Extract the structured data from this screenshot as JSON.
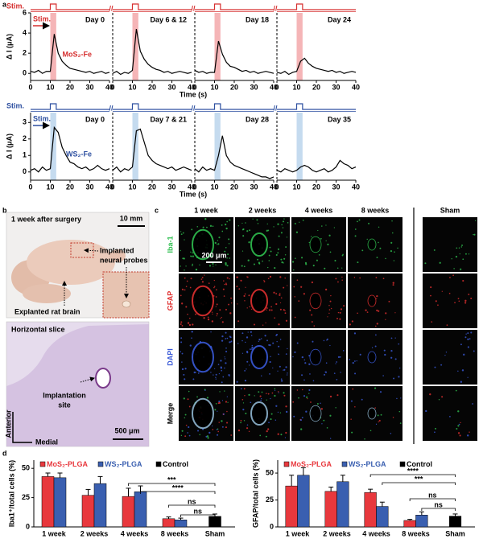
{
  "panel_labels": [
    "a",
    "b",
    "c",
    "d"
  ],
  "chart_data": [
    {
      "type": "line",
      "title": "Day 0",
      "ylabel": "Δ I (μA)",
      "xlabel": "Time (s)",
      "x": [
        0,
        2,
        4,
        6,
        8,
        10,
        12,
        14,
        16,
        18,
        20,
        22,
        24,
        26,
        28,
        30,
        32,
        34,
        36,
        38,
        40
      ],
      "series": [
        {
          "name": "MoS₂-Fe",
          "name_color": "#d62f2f",
          "color": "#000000",
          "values": [
            0.2,
            0.1,
            0.3,
            0.0,
            0.2,
            0.2,
            3.9,
            2.0,
            1.2,
            0.8,
            0.5,
            0.4,
            0.3,
            0.2,
            0.1,
            0.2,
            0.0,
            0.1,
            0.2,
            0.0,
            0.1
          ]
        }
      ],
      "xlim": [
        0,
        40
      ],
      "xticks": [
        0,
        10,
        20,
        30,
        40
      ],
      "ylim": [
        -0.7,
        6
      ],
      "yticks": [
        0,
        2,
        4,
        6
      ],
      "stim": {
        "label": "Stim.",
        "arrow_label": "Stim.",
        "range": [
          10,
          13
        ],
        "shade": "#f5b5b7",
        "color": "#d62f2f"
      }
    },
    {
      "type": "line",
      "title": "Day 6 & 12",
      "x": [
        0,
        2,
        4,
        6,
        8,
        10,
        12,
        14,
        16,
        18,
        20,
        22,
        24,
        26,
        28,
        30,
        32,
        34,
        36,
        38,
        40
      ],
      "series": [
        {
          "color": "#000000",
          "values": [
            0.0,
            0.2,
            -0.1,
            0.1,
            0.0,
            0.3,
            4.4,
            2.2,
            1.4,
            0.9,
            0.6,
            0.4,
            0.3,
            0.1,
            0.2,
            0.0,
            0.1,
            0.2,
            0.1,
            0.0,
            0.1
          ]
        }
      ],
      "xlim": [
        0,
        40
      ],
      "xticks": [
        0,
        10,
        20,
        30,
        40
      ],
      "ylim": [
        -0.7,
        6
      ],
      "stim": {
        "range": [
          10,
          13
        ],
        "shade": "#f5b5b7",
        "color": "#d62f2f"
      }
    },
    {
      "type": "line",
      "title": "Day 18",
      "x": [
        0,
        2,
        4,
        6,
        8,
        10,
        12,
        14,
        16,
        18,
        20,
        22,
        24,
        26,
        28,
        30,
        32,
        34,
        36,
        38,
        40
      ],
      "series": [
        {
          "color": "#000000",
          "values": [
            0.3,
            0.1,
            0.2,
            0.0,
            0.1,
            0.1,
            3.2,
            1.9,
            1.1,
            0.7,
            0.6,
            0.4,
            0.2,
            0.3,
            0.1,
            0.2,
            0.0,
            0.1,
            0.2,
            0.1,
            0.0
          ]
        }
      ],
      "xlim": [
        0,
        40
      ],
      "xticks": [
        0,
        10,
        20,
        30,
        40
      ],
      "ylim": [
        -0.7,
        6
      ],
      "stim": {
        "range": [
          10,
          13
        ],
        "shade": "#f5b5b7",
        "color": "#d62f2f"
      }
    },
    {
      "type": "line",
      "title": "Day 24",
      "x": [
        0,
        2,
        4,
        6,
        8,
        10,
        12,
        14,
        16,
        18,
        20,
        22,
        24,
        26,
        28,
        30,
        32,
        34,
        36,
        38,
        40
      ],
      "series": [
        {
          "color": "#000000",
          "values": [
            0.1,
            0.0,
            0.2,
            -0.1,
            0.1,
            0.2,
            1.2,
            1.5,
            1.0,
            0.7,
            0.5,
            0.4,
            0.3,
            0.2,
            0.3,
            0.1,
            0.2,
            0.0,
            0.1,
            0.2,
            0.1
          ]
        }
      ],
      "xlim": [
        0,
        40
      ],
      "xticks": [
        0,
        10,
        20,
        30,
        40
      ],
      "ylim": [
        -0.7,
        6
      ],
      "stim": {
        "range": [
          10,
          13
        ],
        "shade": "#f5b5b7",
        "color": "#d62f2f"
      }
    },
    {
      "type": "line",
      "title": "Day 0",
      "ylabel": "Δ I (μA)",
      "xlabel": "Time (s)",
      "x": [
        0,
        2,
        4,
        6,
        8,
        10,
        12,
        14,
        16,
        18,
        20,
        22,
        24,
        26,
        28,
        30,
        32,
        34,
        36,
        38,
        40
      ],
      "series": [
        {
          "name": "WS₂-Fe",
          "name_color": "#2d4fa0",
          "color": "#000000",
          "values": [
            0.1,
            0.2,
            0.0,
            0.3,
            0.1,
            0.2,
            2.7,
            2.4,
            1.5,
            1.0,
            0.6,
            0.5,
            0.3,
            0.2,
            0.3,
            0.1,
            0.2,
            0.4,
            0.2,
            0.1,
            0.2
          ]
        }
      ],
      "xlim": [
        0,
        40
      ],
      "xticks": [
        0,
        10,
        20,
        30,
        40
      ],
      "ylim": [
        -0.5,
        3.6
      ],
      "yticks": [
        0,
        1,
        2,
        3
      ],
      "stim": {
        "label": "Stim.",
        "arrow_label": "Stim.",
        "range": [
          10,
          13
        ],
        "shade": "#c5dbef",
        "color": "#2d4fa0"
      }
    },
    {
      "type": "line",
      "title": "Day 7 & 21",
      "x": [
        0,
        2,
        4,
        6,
        8,
        10,
        12,
        14,
        16,
        18,
        20,
        22,
        24,
        26,
        28,
        30,
        32,
        34,
        36,
        38,
        40
      ],
      "series": [
        {
          "color": "#000000",
          "values": [
            0.1,
            0.3,
            0.0,
            0.2,
            0.1,
            0.3,
            2.5,
            2.6,
            1.8,
            1.0,
            0.7,
            0.5,
            0.4,
            0.3,
            0.2,
            0.3,
            0.1,
            0.2,
            0.3,
            0.2,
            0.1
          ]
        }
      ],
      "xlim": [
        0,
        40
      ],
      "xticks": [
        0,
        10,
        20,
        30,
        40
      ],
      "ylim": [
        -0.5,
        3.6
      ],
      "stim": {
        "range": [
          10,
          13
        ],
        "shade": "#c5dbef",
        "color": "#2d4fa0"
      }
    },
    {
      "type": "line",
      "title": "Day 28",
      "x": [
        0,
        2,
        4,
        6,
        8,
        10,
        12,
        14,
        16,
        18,
        20,
        22,
        24,
        26,
        28,
        30,
        32,
        34,
        36,
        38,
        40
      ],
      "series": [
        {
          "color": "#000000",
          "values": [
            0.2,
            0.0,
            0.3,
            0.1,
            0.2,
            0.1,
            1.0,
            2.2,
            1.0,
            0.6,
            0.4,
            0.3,
            0.2,
            0.1,
            0.0,
            -0.1,
            -0.2,
            -0.3,
            -0.3,
            -0.4,
            -0.3
          ]
        }
      ],
      "xlim": [
        0,
        40
      ],
      "xticks": [
        0,
        10,
        20,
        30,
        40
      ],
      "ylim": [
        -0.5,
        3.6
      ],
      "stim": {
        "range": [
          10,
          13
        ],
        "shade": "#c5dbef",
        "color": "#2d4fa0"
      }
    },
    {
      "type": "line",
      "title": "Day 35",
      "x": [
        0,
        2,
        4,
        6,
        8,
        10,
        12,
        14,
        16,
        18,
        20,
        22,
        24,
        26,
        28,
        30,
        32,
        34,
        36,
        38,
        40
      ],
      "series": [
        {
          "color": "#000000",
          "values": [
            0.1,
            0.0,
            0.2,
            0.1,
            0.0,
            0.1,
            0.3,
            0.4,
            0.3,
            0.1,
            0.0,
            0.1,
            0.2,
            0.0,
            0.1,
            0.3,
            0.7,
            0.5,
            0.4,
            0.2,
            0.3
          ]
        }
      ],
      "xlim": [
        0,
        40
      ],
      "xticks": [
        0,
        10,
        20,
        30,
        40
      ],
      "ylim": [
        -0.5,
        3.6
      ],
      "stim": {
        "range": [
          10,
          13
        ],
        "shade": "#c5dbef",
        "color": "#2d4fa0"
      }
    },
    {
      "type": "bar",
      "ylabel": "Iba1⁺/total cells (%)",
      "categories": [
        "1 week",
        "2 weeks",
        "4 weeks",
        "8 weeks",
        "Sham"
      ],
      "ylim": [
        0,
        57
      ],
      "yticks": [
        0,
        25,
        50
      ],
      "series": [
        {
          "name": "MoS₂-PLGA",
          "color": "#e8383d",
          "values": [
            43,
            27,
            26,
            7,
            null
          ],
          "errors": [
            3,
            5,
            7,
            1.5,
            null
          ]
        },
        {
          "name": "WS₂-PLGA",
          "color": "#3a5fb0",
          "values": [
            42,
            37,
            30,
            6,
            null
          ],
          "errors": [
            4,
            6,
            5,
            1.5,
            null
          ]
        },
        {
          "name": "Control",
          "color": "#000000",
          "values": [
            null,
            null,
            null,
            null,
            9
          ],
          "errors": [
            null,
            null,
            null,
            null,
            2
          ]
        }
      ],
      "significance": [
        "***",
        "****",
        "ns",
        "ns"
      ]
    },
    {
      "type": "bar",
      "ylabel": "GFAP/total cells (%)",
      "categories": [
        "1 week",
        "2 weeks",
        "4 weeks",
        "8 weeks",
        "Sham"
      ],
      "ylim": [
        0,
        62
      ],
      "yticks": [
        0,
        25,
        50
      ],
      "series": [
        {
          "name": "MoS₂-PLGA",
          "color": "#e8383d",
          "values": [
            38,
            33,
            32,
            6,
            null
          ],
          "errors": [
            10,
            4,
            3,
            1,
            null
          ]
        },
        {
          "name": "WS₂-PLGA",
          "color": "#3a5fb0",
          "values": [
            48,
            42,
            19,
            11,
            null
          ],
          "errors": [
            7,
            6,
            4,
            3,
            null
          ]
        },
        {
          "name": "Control",
          "color": "#000000",
          "values": [
            null,
            null,
            null,
            null,
            10
          ],
          "errors": [
            null,
            null,
            null,
            null,
            2
          ]
        }
      ],
      "significance": [
        "****",
        "***",
        "ns",
        "ns"
      ]
    }
  ],
  "panel_b": {
    "photo_title": "1 week after surgery",
    "photo_scale": "10 mm",
    "implant_label": [
      "Implanted",
      "neural probes"
    ],
    "brain_label": "Explanted rat brain",
    "slice_title": "Horizontal slice",
    "site_label": [
      "Implantation",
      "site"
    ],
    "axis_vertical": "Anterior",
    "axis_horizontal": "Medial",
    "slice_scale": "500 μm"
  },
  "panel_c": {
    "columns": [
      "1 week",
      "2 weeks",
      "4 weeks",
      "8 weeks",
      "Sham"
    ],
    "rows": [
      "Iba-1",
      "GFAP",
      "DAPI",
      "Merge"
    ],
    "scale": "200 μm"
  }
}
